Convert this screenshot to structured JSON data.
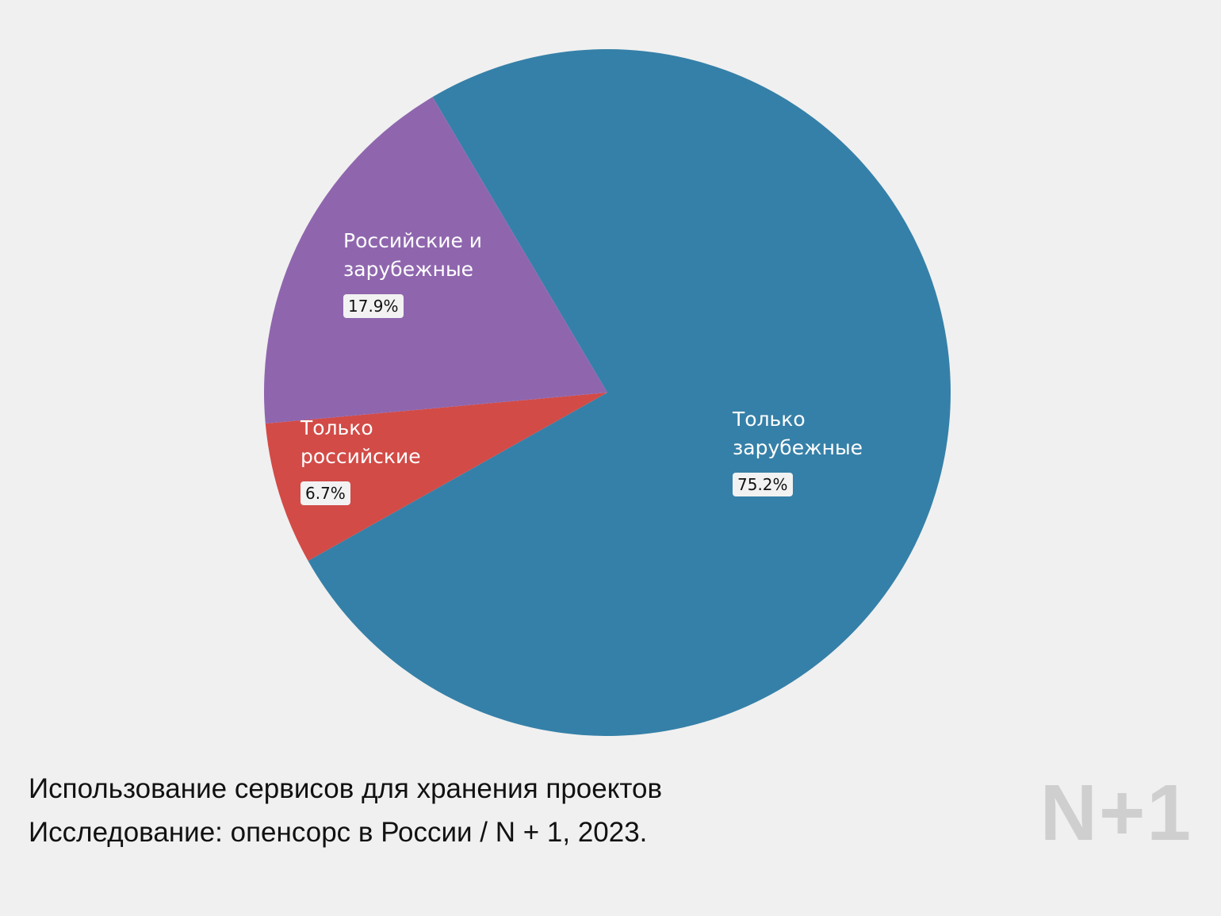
{
  "chart_data": {
    "type": "pie",
    "categories": [
      "Только зарубежные",
      "Только российские",
      "Российские и зарубежные"
    ],
    "values": [
      75.2,
      6.7,
      17.9
    ],
    "value_labels": [
      "75.2%",
      "6.7%",
      "17.9%"
    ],
    "colors": [
      "#3580a8",
      "#d24b47",
      "#8f66ae"
    ]
  },
  "caption": {
    "line1": "Использование сервисов для хранения проектов",
    "line2": "Исследование: опенсорс в России / N + 1, 2023."
  },
  "logo": "N+1"
}
